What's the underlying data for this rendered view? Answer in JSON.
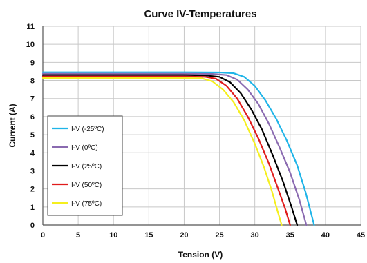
{
  "chart_data": {
    "type": "line",
    "title": "Curve IV-Temperatures",
    "xlabel": "Tension (V)",
    "ylabel": "Current (A)",
    "xlim": [
      0,
      45
    ],
    "ylim": [
      0,
      11
    ],
    "x_ticks": [
      0,
      5,
      10,
      15,
      20,
      25,
      30,
      35,
      40,
      45
    ],
    "y_ticks": [
      0,
      1,
      2,
      3,
      4,
      5,
      6,
      7,
      8,
      9,
      10,
      11
    ],
    "grid": true,
    "legend_position": "left",
    "series": [
      {
        "name": "I-V (-25ºC)",
        "color": "#1FB4E8",
        "points": [
          [
            0,
            8.45
          ],
          [
            20,
            8.45
          ],
          [
            25,
            8.44
          ],
          [
            27,
            8.4
          ],
          [
            28.5,
            8.2
          ],
          [
            30,
            7.7
          ],
          [
            31.5,
            6.9
          ],
          [
            33,
            5.9
          ],
          [
            34.5,
            4.7
          ],
          [
            36,
            3.3
          ],
          [
            37.2,
            1.8
          ],
          [
            38.4,
            0
          ]
        ]
      },
      {
        "name": "I-V (0ºC)",
        "color": "#8A6AB0",
        "points": [
          [
            0,
            8.37
          ],
          [
            20,
            8.37
          ],
          [
            24,
            8.36
          ],
          [
            26,
            8.3
          ],
          [
            27.5,
            8.05
          ],
          [
            29,
            7.5
          ],
          [
            30.5,
            6.7
          ],
          [
            32,
            5.6
          ],
          [
            33.5,
            4.3
          ],
          [
            35,
            2.9
          ],
          [
            36.3,
            1.4
          ],
          [
            37.3,
            0
          ]
        ]
      },
      {
        "name": "I-V (25ºC)",
        "color": "#000000",
        "points": [
          [
            0,
            8.3
          ],
          [
            20,
            8.3
          ],
          [
            23,
            8.28
          ],
          [
            25,
            8.2
          ],
          [
            26.5,
            7.9
          ],
          [
            28,
            7.3
          ],
          [
            29.5,
            6.4
          ],
          [
            31,
            5.3
          ],
          [
            32.5,
            3.9
          ],
          [
            34,
            2.4
          ],
          [
            35.2,
            1.0
          ],
          [
            36,
            0
          ]
        ]
      },
      {
        "name": "I-V (50ºC)",
        "color": "#E01B1B",
        "points": [
          [
            0,
            8.22
          ],
          [
            20,
            8.22
          ],
          [
            23,
            8.2
          ],
          [
            24.5,
            8.1
          ],
          [
            26,
            7.7
          ],
          [
            27.5,
            7.0
          ],
          [
            29,
            6.0
          ],
          [
            30.5,
            4.8
          ],
          [
            32,
            3.4
          ],
          [
            33.3,
            2.0
          ],
          [
            34.3,
            0.9
          ],
          [
            35,
            0
          ]
        ]
      },
      {
        "name": "I-V (75ºC)",
        "color": "#F5EF1E",
        "points": [
          [
            0,
            8.13
          ],
          [
            20,
            8.13
          ],
          [
            22.5,
            8.12
          ],
          [
            24,
            7.95
          ],
          [
            25.5,
            7.5
          ],
          [
            27,
            6.8
          ],
          [
            28.5,
            5.8
          ],
          [
            30,
            4.5
          ],
          [
            31.3,
            3.2
          ],
          [
            32.4,
            1.9
          ],
          [
            33.2,
            0.8
          ],
          [
            33.8,
            0
          ]
        ]
      }
    ]
  }
}
